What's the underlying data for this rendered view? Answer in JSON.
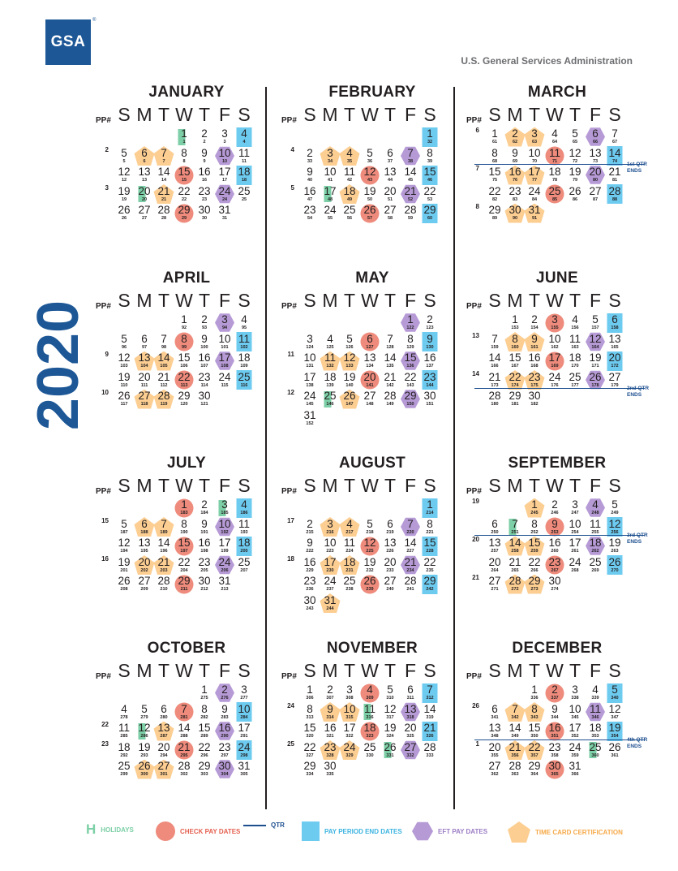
{
  "header": {
    "logo_text": "GSA",
    "agency": "U.S. General Services Administration",
    "year": "2020"
  },
  "labels": {
    "pp": "PP#",
    "days": [
      "S",
      "M",
      "T",
      "W",
      "T",
      "F",
      "S"
    ]
  },
  "legend": {
    "holidays": "HOLIDAYS",
    "check": "CHECK PAY DATES",
    "qtr": "QTR",
    "ppend": "PAY PERIOD END DATES",
    "eft": "EFT PAY DATES",
    "tcc": "TIME CARD CERTIFICATION"
  },
  "colors": {
    "blue": "#1d5796",
    "check": "#ee8b7c",
    "ppend": "#6dcbf0",
    "eft": "#b69ad6",
    "tcc": "#fcce92",
    "holiday": "#7ccfa6"
  },
  "months": [
    {
      "name": "JANUARY",
      "first": 3,
      "days": 31,
      "startJ": 1,
      "pp": {
        "1": "2",
        "3": "3"
      },
      "marks": {
        "1": "H",
        "4": "B",
        "6": "P",
        "7": "P",
        "10": "X",
        "15": "C",
        "18": "B",
        "20": "H",
        "21": "P",
        "24": "X",
        "29": "C"
      }
    },
    {
      "name": "FEBRUARY",
      "first": 6,
      "days": 29,
      "startJ": 32,
      "pp": {
        "1": "4",
        "3": "5"
      },
      "marks": {
        "1": "B",
        "3": "P",
        "4": "P",
        "7": "X",
        "12": "C",
        "15": "B",
        "17": "H",
        "18": "P",
        "21": "X",
        "26": "C",
        "29": "B"
      }
    },
    {
      "name": "MARCH",
      "first": 0,
      "days": 31,
      "startJ": 61,
      "pp": {
        "0": "6",
        "2": "7",
        "4": "8"
      },
      "marks": {
        "2": "P",
        "3": "P",
        "6": "X",
        "11": "C",
        "14": "B",
        "16": "P",
        "17": "P",
        "20": "X",
        "25": "C",
        "28": "B",
        "30": "P",
        "31": "P"
      },
      "qtr": {
        "after": 1,
        "label": "1st QTR ENDS"
      }
    },
    {
      "name": "APRIL",
      "first": 3,
      "days": 30,
      "startJ": 92,
      "pp": {
        "2": "9",
        "4": "10"
      },
      "marks": {
        "3": "X",
        "8": "C",
        "11": "B",
        "13": "P",
        "14": "P",
        "17": "X",
        "22": "C",
        "25": "B",
        "27": "P",
        "28": "P"
      }
    },
    {
      "name": "MAY",
      "first": 5,
      "days": 31,
      "startJ": 122,
      "pp": {
        "2": "11",
        "4": "12"
      },
      "marks": {
        "1": "X",
        "6": "C",
        "9": "B",
        "11": "P",
        "12": "P",
        "15": "X",
        "20": "C",
        "23": "B",
        "25": "H",
        "26": "P",
        "29": "X"
      }
    },
    {
      "name": "JUNE",
      "first": 1,
      "days": 30,
      "startJ": 153,
      "pp": {
        "1": "13",
        "3": "14"
      },
      "marks": {
        "3": "C",
        "6": "B",
        "8": "P",
        "9": "P",
        "12": "X",
        "17": "C",
        "20": "B",
        "22": "P",
        "23": "P",
        "26": "X"
      },
      "qtr": {
        "after": 3,
        "label": "2nd QTR ENDS"
      }
    },
    {
      "name": "JULY",
      "first": 3,
      "days": 31,
      "startJ": 183,
      "pp": {
        "1": "15",
        "3": "16"
      },
      "marks": {
        "1": "C",
        "3": "H",
        "4": "B",
        "6": "P",
        "7": "P",
        "10": "X",
        "15": "C",
        "18": "B",
        "20": "P",
        "21": "P",
        "24": "X",
        "29": "C"
      }
    },
    {
      "name": "AUGUST",
      "first": 6,
      "days": 31,
      "startJ": 214,
      "pp": {
        "1": "17",
        "3": "18"
      },
      "marks": {
        "1": "B",
        "3": "P",
        "4": "P",
        "7": "X",
        "12": "C",
        "15": "B",
        "17": "P",
        "18": "P",
        "21": "X",
        "26": "C",
        "29": "B",
        "31": "P"
      }
    },
    {
      "name": "SEPTEMBER",
      "first": 2,
      "days": 30,
      "startJ": 245,
      "pp": {
        "0": "19",
        "2": "20",
        "4": "21"
      },
      "marks": {
        "1": "P",
        "4": "X",
        "7": "H",
        "9": "C",
        "12": "B",
        "14": "P",
        "15": "P",
        "18": "X",
        "23": "C",
        "26": "B",
        "28": "P",
        "29": "P"
      },
      "qtr": {
        "after": 1,
        "label": "3rd QTR ENDS"
      }
    },
    {
      "name": "OCTOBER",
      "first": 4,
      "days": 31,
      "startJ": 275,
      "pp": {
        "2": "22",
        "3": "23"
      },
      "marks": {
        "2": "X",
        "7": "C",
        "10": "B",
        "12": "H",
        "13": "P",
        "16": "X",
        "21": "C",
        "24": "B",
        "26": "P",
        "27": "P",
        "30": "X"
      }
    },
    {
      "name": "NOVEMBER",
      "first": 0,
      "days": 30,
      "startJ": 306,
      "pp": {
        "1": "24",
        "3": "25"
      },
      "marks": {
        "4": "C",
        "7": "B",
        "9": "P",
        "10": "P",
        "11": "H",
        "13": "X",
        "18": "C",
        "21": "B",
        "23": "P",
        "24": "P",
        "26": "H",
        "27": "X"
      }
    },
    {
      "name": "DECEMBER",
      "first": 2,
      "days": 31,
      "startJ": 336,
      "pp": {
        "1": "26",
        "3": "1"
      },
      "marks": {
        "2": "C",
        "5": "B",
        "7": "P",
        "8": "P",
        "11": "X",
        "16": "C",
        "19": "B",
        "21": "P",
        "22": "P",
        "25": "H",
        "30": "C"
      },
      "qtr": {
        "after": 2,
        "label": "4th QTR ENDS"
      }
    }
  ]
}
